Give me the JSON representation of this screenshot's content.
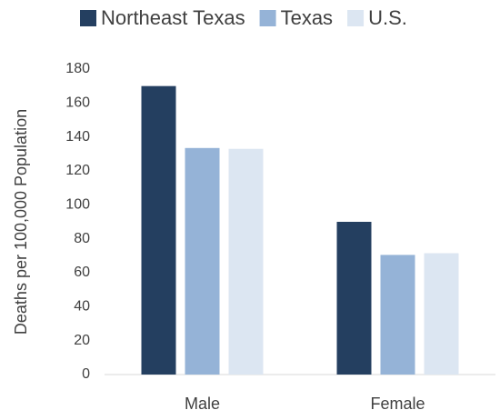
{
  "chart_data": {
    "type": "bar",
    "y_label": "Deaths per 100,000 Population",
    "categories": [
      "Male",
      "Female"
    ],
    "series": [
      {
        "name": "Northeast Texas",
        "color": "#243f60",
        "values": [
          170,
          90
        ]
      },
      {
        "name": "Texas",
        "color": "#95b3d7",
        "values": [
          133.5,
          70.5
        ]
      },
      {
        "name": "U.S.",
        "color": "#dce6f2",
        "values": [
          133,
          71.5
        ]
      }
    ],
    "ylim": [
      0,
      180
    ],
    "yticks": [
      0,
      20,
      40,
      60,
      80,
      100,
      120,
      140,
      160,
      180
    ],
    "legend": "top"
  }
}
